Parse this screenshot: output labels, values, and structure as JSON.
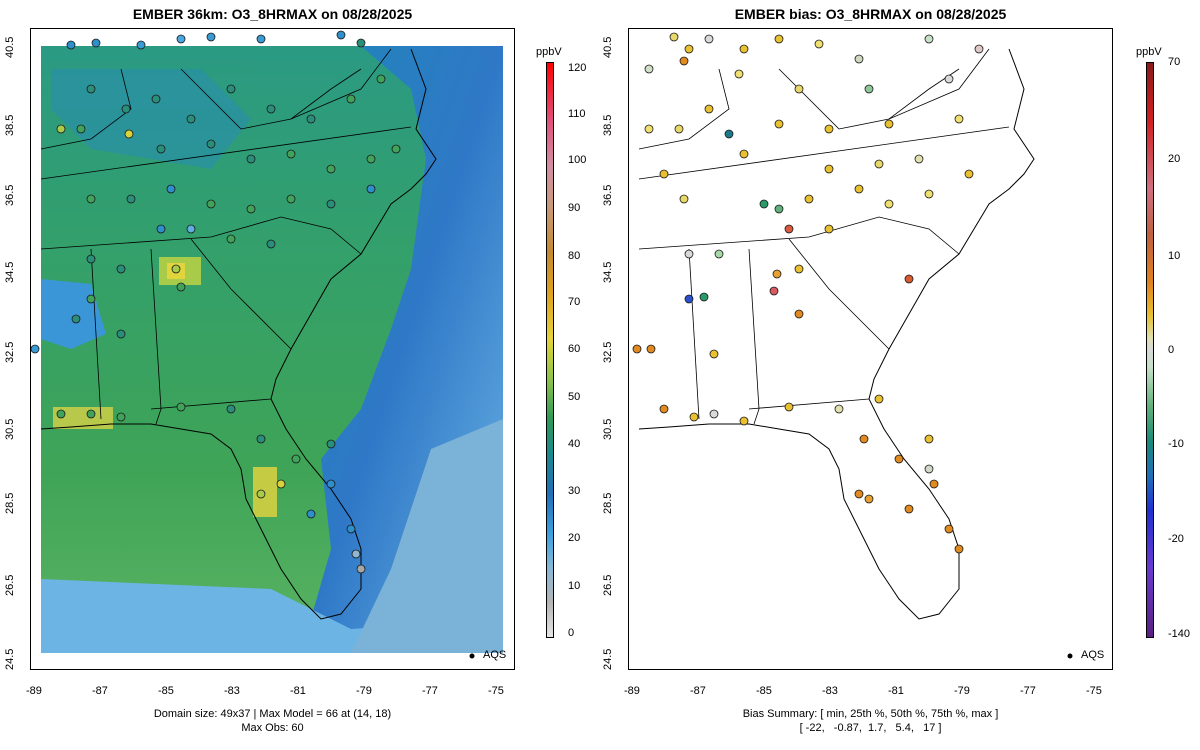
{
  "left_panel": {
    "title": "EMBER 36km: O3_8HRMAX on 08/28/2025",
    "unit": "ppbV",
    "legend_label": "AQS",
    "caption_line1": "Domain size: 49x37 | Max Model = 66 at (14, 18)",
    "caption_line2": "Max Obs: 60",
    "colorbar_ticks": [
      "120",
      "110",
      "100",
      "90",
      "80",
      "70",
      "60",
      "50",
      "40",
      "30",
      "20",
      "10",
      "0"
    ]
  },
  "right_panel": {
    "title": "EMBER bias: O3_8HRMAX on 08/28/2025",
    "unit": "ppbV",
    "legend_label": "AQS",
    "caption_line1": "Bias Summary: [ min, 25th %, 50th %, 75th %, max ]",
    "caption_line2": "[ -22,   -0.87,  1.7,   5.4,   17 ]",
    "colorbar_ticks": [
      "70",
      "20",
      "10",
      "0",
      "-10",
      "-20",
      "-140"
    ]
  },
  "axes": {
    "x_ticks": [
      "-89",
      "-87",
      "-85",
      "-83",
      "-81",
      "-79",
      "-77",
      "-75"
    ],
    "y_ticks": [
      "40.5",
      "38.5",
      "36.5",
      "34.5",
      "32.5",
      "30.5",
      "28.5",
      "26.5",
      "24.5"
    ]
  },
  "colors": {
    "water": "#2f86c9",
    "ocean_light": "#6cb4e4",
    "land_green": "#41a35a",
    "land_teal": "#2a9a83",
    "hotspot": "#d9d23a"
  }
}
